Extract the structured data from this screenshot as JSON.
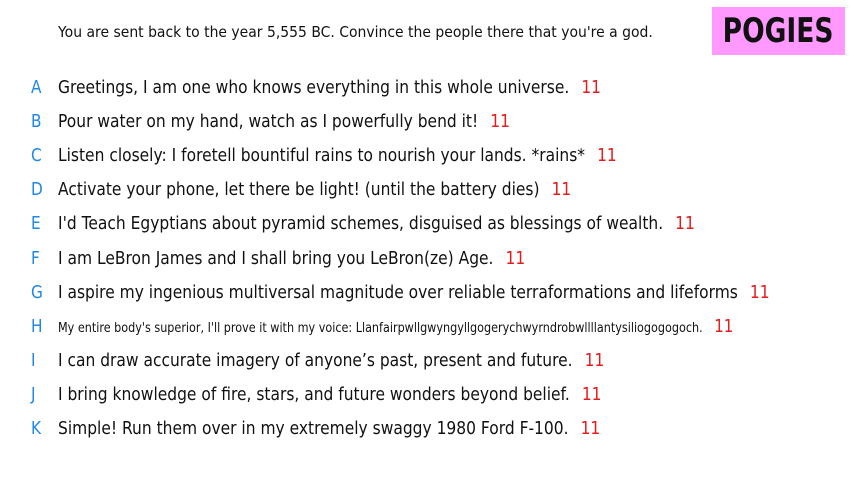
{
  "prompt": "You are sent back to the year 5,555 BC. Convince the people there that you're a god.",
  "logo": "POGIES",
  "answers": [
    {
      "letter": "A",
      "text": "Greetings, I am one who knows everything in this whole universe.",
      "score": "11"
    },
    {
      "letter": "B",
      "text": "Pour water on my hand, watch as I powerfully bend it!",
      "score": "11"
    },
    {
      "letter": "C",
      "text": "Listen closely: I foretell bountiful rains to nourish your lands. *rains*",
      "score": "11"
    },
    {
      "letter": "D",
      "text": "Activate your phone, let there be light! (until the battery dies)",
      "score": "11"
    },
    {
      "letter": "E",
      "text": "I'd Teach Egyptians about pyramid schemes, disguised as blessings of wealth.",
      "score": "11"
    },
    {
      "letter": "F",
      "text": "I am LeBron James and I shall bring you LeBron(ze) Age.",
      "score": "11"
    },
    {
      "letter": "G",
      "text": "I aspire my ingenious multiversal magnitude over reliable terraformations and lifeforms",
      "score": "11"
    },
    {
      "letter": "H",
      "text": "My entire body's superior, I'll prove it with my voice: Llanfairpwllgwyngyllgogerychwyrndrobwllllantysiliogogogoch.",
      "score": "11"
    },
    {
      "letter": "I",
      "text": "I can draw accurate imagery of anyone’s past, present and future.",
      "score": "11"
    },
    {
      "letter": "J",
      "text": "I bring knowledge of fire, stars, and future wonders beyond belief.",
      "score": "11"
    },
    {
      "letter": "K",
      "text": "Simple! Run them over in my extremely swaggy 1980 Ford F-100.",
      "score": "11"
    }
  ]
}
